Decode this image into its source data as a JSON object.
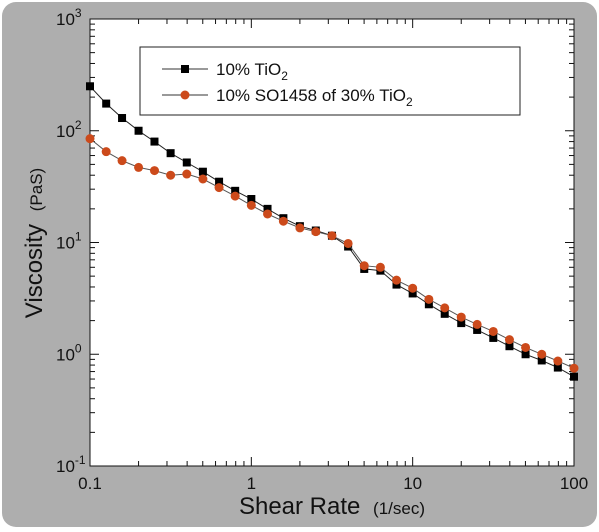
{
  "chart_data": {
    "type": "line",
    "xscale": "log",
    "yscale": "log",
    "xlim": [
      0.1,
      100
    ],
    "ylim": [
      0.1,
      1000
    ],
    "grid": false,
    "legend_position": "top-right",
    "xlabel": "Shear Rate",
    "xlabel_unit": "(1/sec)",
    "ylabel": "Viscosity",
    "ylabel_unit": "(PaS)",
    "x_ticks": [
      {
        "value": 0.1,
        "label": "0.1"
      },
      {
        "value": 1,
        "label": "1"
      },
      {
        "value": 10,
        "label": "10"
      },
      {
        "value": 100,
        "label": "100"
      }
    ],
    "y_ticks": [
      {
        "value": 0.1,
        "base": "10",
        "exp": "-1"
      },
      {
        "value": 1,
        "base": "10",
        "exp": "0"
      },
      {
        "value": 10,
        "base": "10",
        "exp": "1"
      },
      {
        "value": 100,
        "base": "10",
        "exp": "2"
      },
      {
        "value": 1000,
        "base": "10",
        "exp": "3"
      }
    ],
    "series": [
      {
        "name_main": "10% TiO",
        "name_sub": "2",
        "name_after": "",
        "color": "#000000",
        "marker": "square",
        "x": [
          0.1,
          0.126,
          0.158,
          0.2,
          0.251,
          0.316,
          0.398,
          0.501,
          0.631,
          0.794,
          1,
          1.26,
          1.58,
          2,
          2.51,
          3.16,
          3.98,
          5.01,
          6.31,
          7.94,
          10,
          12.6,
          15.8,
          20,
          25.1,
          31.6,
          39.8,
          50.1,
          63.1,
          79.4,
          100
        ],
        "y": [
          250,
          175,
          130,
          100,
          80,
          63,
          52,
          43,
          35,
          29,
          24.5,
          20,
          16.5,
          14,
          12.8,
          11.5,
          9.2,
          5.8,
          5.6,
          4.2,
          3.5,
          2.8,
          2.3,
          1.9,
          1.65,
          1.4,
          1.18,
          1.0,
          0.88,
          0.76,
          0.63
        ]
      },
      {
        "name_main": "10% SO1458 of 30% TiO",
        "name_sub": "2",
        "name_after": "",
        "color": "#cc4a1b",
        "marker": "circle",
        "x": [
          0.1,
          0.126,
          0.158,
          0.2,
          0.251,
          0.316,
          0.398,
          0.501,
          0.631,
          0.794,
          1,
          1.26,
          1.58,
          2,
          2.51,
          3.16,
          3.98,
          5.01,
          6.31,
          7.94,
          10,
          12.6,
          15.8,
          20,
          25.1,
          31.6,
          39.8,
          50.1,
          63.1,
          79.4,
          100
        ],
        "y": [
          85,
          65,
          54,
          47,
          44,
          40,
          41,
          37,
          31,
          26,
          21.5,
          18,
          15.5,
          13.5,
          12.5,
          11.5,
          9.8,
          6.2,
          6.0,
          4.6,
          3.9,
          3.1,
          2.6,
          2.15,
          1.85,
          1.6,
          1.35,
          1.15,
          1.0,
          0.87,
          0.75
        ]
      }
    ]
  }
}
